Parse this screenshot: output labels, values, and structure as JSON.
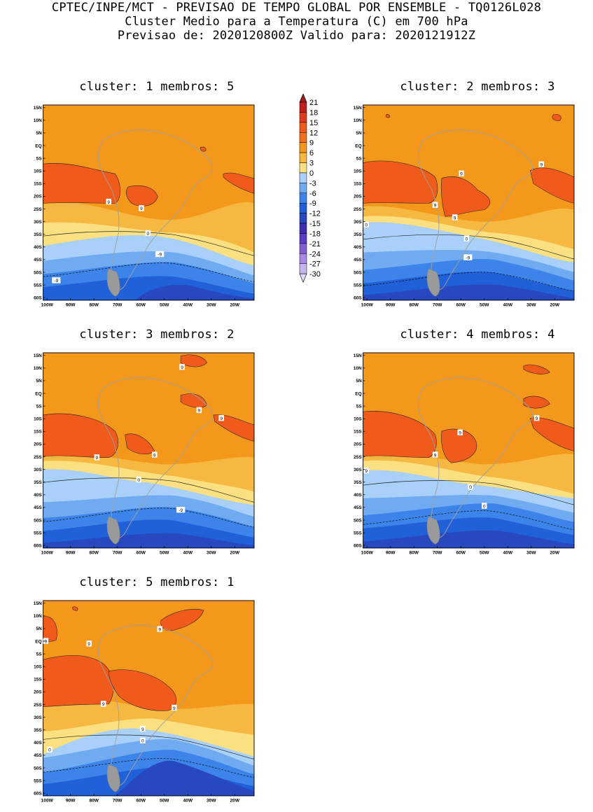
{
  "header": {
    "line1": "CPTEC/INPE/MCT - PREVISAO DE TEMPO GLOBAL POR ENSEMBLE - TQ0126L028",
    "line2": "Cluster Medio para a Temperatura (C) em 700 hPa",
    "line3": "Previsao de: 2020120800Z   Valido para: 2020121912Z"
  },
  "axes": {
    "lat_ticks": [
      "15N",
      "10N",
      "5N",
      "EQ",
      "5S",
      "10S",
      "15S",
      "20S",
      "25S",
      "30S",
      "35S",
      "40S",
      "45S",
      "50S",
      "55S",
      "60S"
    ],
    "lon_ticks": [
      "100W",
      "90W",
      "80W",
      "70W",
      "60W",
      "50W",
      "40W",
      "30W",
      "20W"
    ]
  },
  "colorbar": {
    "labels": [
      "21",
      "18",
      "15",
      "12",
      "9",
      "6",
      "3",
      "0",
      "-3",
      "-6",
      "-9",
      "-12",
      "-15",
      "-18",
      "-21",
      "-24",
      "-27",
      "-30"
    ],
    "colors": [
      "#a01c1c",
      "#c02020",
      "#e03a1e",
      "#f05a1a",
      "#f4701c",
      "#f4981c",
      "#f6b840",
      "#fae080",
      "#a8d0f8",
      "#70aaf0",
      "#3c84ea",
      "#2060d8",
      "#2848c0",
      "#3c30b0",
      "#5c3cc4",
      "#8060d0",
      "#a888e0",
      "#c8b4ec",
      "#e4dcf6"
    ]
  },
  "panels": [
    {
      "title": "cluster: 1   membros: 5",
      "labels": [
        "9",
        "9",
        "0",
        "-9",
        "-9"
      ]
    },
    {
      "title": "cluster: 2   membros: 3",
      "labels": [
        "9",
        "9",
        "9",
        "9",
        "0",
        "0",
        "-9"
      ]
    },
    {
      "title": "cluster: 3   membros: 2",
      "labels": [
        "9",
        "9",
        "9",
        "9",
        "9",
        "0",
        "-9"
      ]
    },
    {
      "title": "cluster: 4   membros: 4",
      "labels": [
        "9",
        "9",
        "9",
        "9",
        "0",
        "0",
        "-9"
      ]
    },
    {
      "title": "cluster: 5   membros: 1",
      "labels": [
        "9",
        "9",
        "9",
        "9",
        "9",
        "9",
        "0",
        "0",
        "-9"
      ]
    }
  ]
}
